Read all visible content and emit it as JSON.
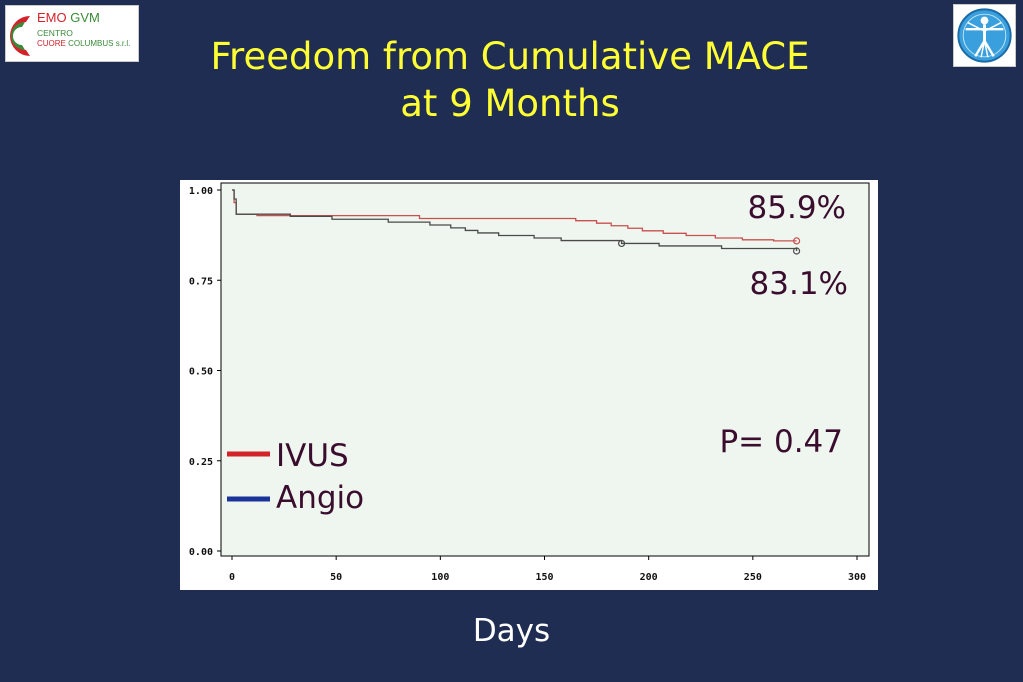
{
  "logo_left": {
    "line1a": "EMO",
    "line1b": "GVM",
    "line2": "CENTRO",
    "line3a": "CUORE",
    "line3b": "COLUMBUS s.r.l."
  },
  "title": {
    "line1": "Freedom from Cumulative MACE",
    "line2": "at 9 Months"
  },
  "x_axis_label": "Days",
  "colors": {
    "background": "#1f2d52",
    "title": "#ffff33",
    "ivus": "#d2232a",
    "angio": "#1a3399",
    "annotation": "#3a0d2e"
  },
  "chart_data": {
    "type": "line",
    "xlabel": "Days",
    "ylabel": "",
    "xlim": [
      0,
      300
    ],
    "ylim": [
      0,
      1
    ],
    "x_ticks": [
      "0",
      "50",
      "100",
      "150",
      "200",
      "250",
      "300"
    ],
    "y_ticks": [
      "0.00",
      "0.25",
      "0.50",
      "0.75",
      "1.00"
    ],
    "legend": "bottom-left",
    "series": [
      {
        "name": "IVUS",
        "color": "#d2232a",
        "x": [
          0,
          1,
          2,
          12,
          90,
          165,
          175,
          182,
          190,
          197,
          207,
          218,
          232,
          245,
          260,
          271
        ],
        "y": [
          1.0,
          0.965,
          0.933,
          0.929,
          0.921,
          0.915,
          0.908,
          0.901,
          0.894,
          0.887,
          0.88,
          0.874,
          0.867,
          0.862,
          0.859,
          0.859
        ],
        "censored_x": [
          271
        ],
        "end_label": "85.9%"
      },
      {
        "name": "Angio",
        "color": "#1a3399",
        "x": [
          0,
          1,
          2,
          28,
          48,
          75,
          95,
          105,
          112,
          118,
          128,
          145,
          158,
          187,
          205,
          235,
          271
        ],
        "y": [
          1.0,
          0.975,
          0.933,
          0.927,
          0.919,
          0.911,
          0.903,
          0.895,
          0.888,
          0.881,
          0.874,
          0.867,
          0.86,
          0.852,
          0.845,
          0.838,
          0.831
        ],
        "censored_x": [
          187,
          271
        ],
        "end_label": "83.1%"
      }
    ],
    "annotations": [
      "85.9%",
      "83.1%",
      "P= 0.47"
    ]
  }
}
